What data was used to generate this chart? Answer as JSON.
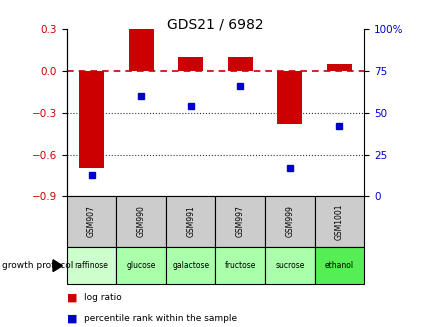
{
  "title": "GDS21 / 6982",
  "samples": [
    "GSM907",
    "GSM990",
    "GSM991",
    "GSM997",
    "GSM999",
    "GSM1001"
  ],
  "log_ratios": [
    -0.7,
    0.3,
    0.1,
    0.1,
    -0.38,
    0.05
  ],
  "percentile_ranks": [
    13,
    60,
    54,
    66,
    17,
    42
  ],
  "protocols": [
    "raffinose",
    "glucose",
    "galactose",
    "fructose",
    "sucrose",
    "ethanol"
  ],
  "protocol_colors": [
    "#ccffcc",
    "#aaffaa",
    "#aaffaa",
    "#aaffaa",
    "#aaffaa",
    "#55ee55"
  ],
  "left_ylim": [
    -0.9,
    0.3
  ],
  "left_yticks": [
    -0.9,
    -0.6,
    -0.3,
    0.0,
    0.3
  ],
  "right_ylim": [
    0,
    100
  ],
  "right_yticks": [
    0,
    25,
    50,
    75,
    100
  ],
  "bar_color": "#cc0000",
  "dot_color": "#0000cc",
  "zero_line_color": "#cc0000",
  "dotted_line_color": "#333333",
  "gsm_bg_color": "#cccccc",
  "bar_width": 0.5
}
